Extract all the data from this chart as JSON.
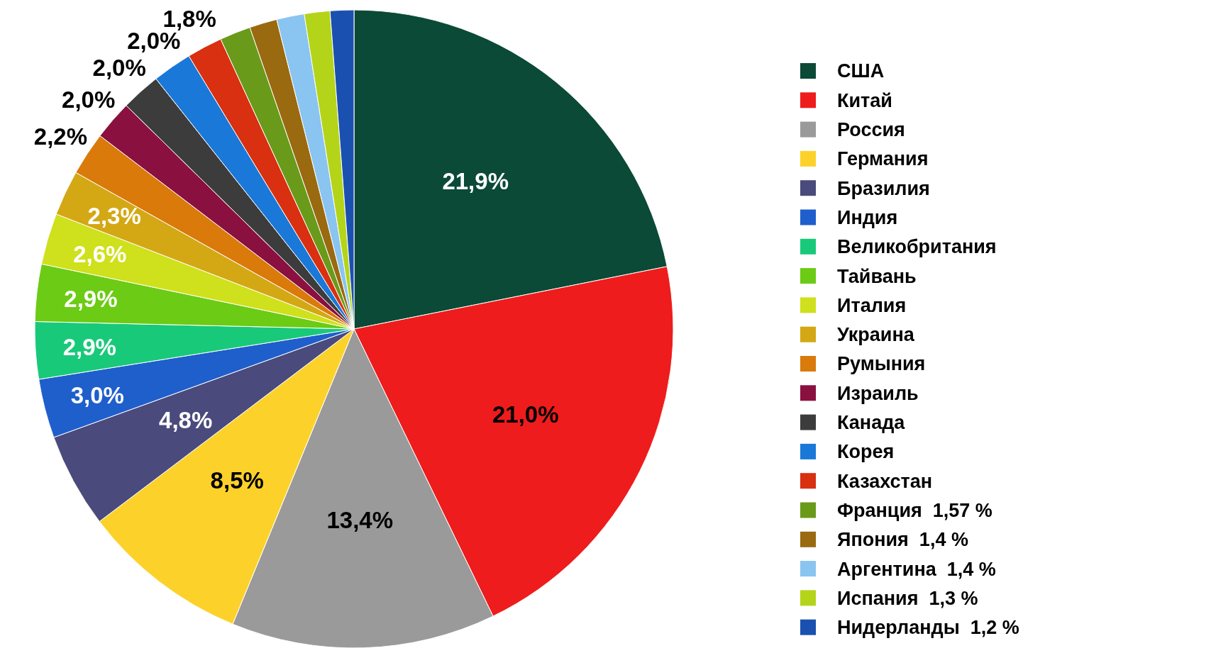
{
  "chart_data": {
    "type": "pie",
    "categories": [
      "США",
      "Китай",
      "Россия",
      "Германия",
      "Бразилия",
      "Индия",
      "Великобритания",
      "Тайвань",
      "Италия",
      "Украина",
      "Румыния",
      "Израиль",
      "Канада",
      "Корея",
      "Казахстан",
      "Франция  1,57 %",
      "Япония  1,4 %",
      "Аргентина  1,4 %",
      "Испания  1,3 %",
      "Нидерланды  1,2 %"
    ],
    "values": [
      21.9,
      21.0,
      13.4,
      8.5,
      4.8,
      3.0,
      2.9,
      2.9,
      2.6,
      2.3,
      2.2,
      2.0,
      2.0,
      2.0,
      1.8,
      1.57,
      1.4,
      1.4,
      1.3,
      1.2
    ],
    "value_labels": [
      "21,9%",
      "21,0%",
      "13,4%",
      "8,5%",
      "4,8%",
      "3,0%",
      "2,9%",
      "2,9%",
      "2,6%",
      "2,3%",
      "2,2%",
      "2,0%",
      "2,0%",
      "2,0%",
      "1,8%",
      null,
      null,
      null,
      null,
      null
    ],
    "colors": [
      "#0b4a36",
      "#ee1c1c",
      "#9a9a9a",
      "#fcd22a",
      "#4a4a7c",
      "#1f5fcc",
      "#19c97a",
      "#6ccb14",
      "#cfe01c",
      "#d4a814",
      "#d97a0a",
      "#8a1040",
      "#3c3c3c",
      "#1a78d8",
      "#d83010",
      "#6a9a1a",
      "#9a6a10",
      "#8ac4f0",
      "#b4d41a",
      "#1a50b0"
    ],
    "legend": "right"
  }
}
